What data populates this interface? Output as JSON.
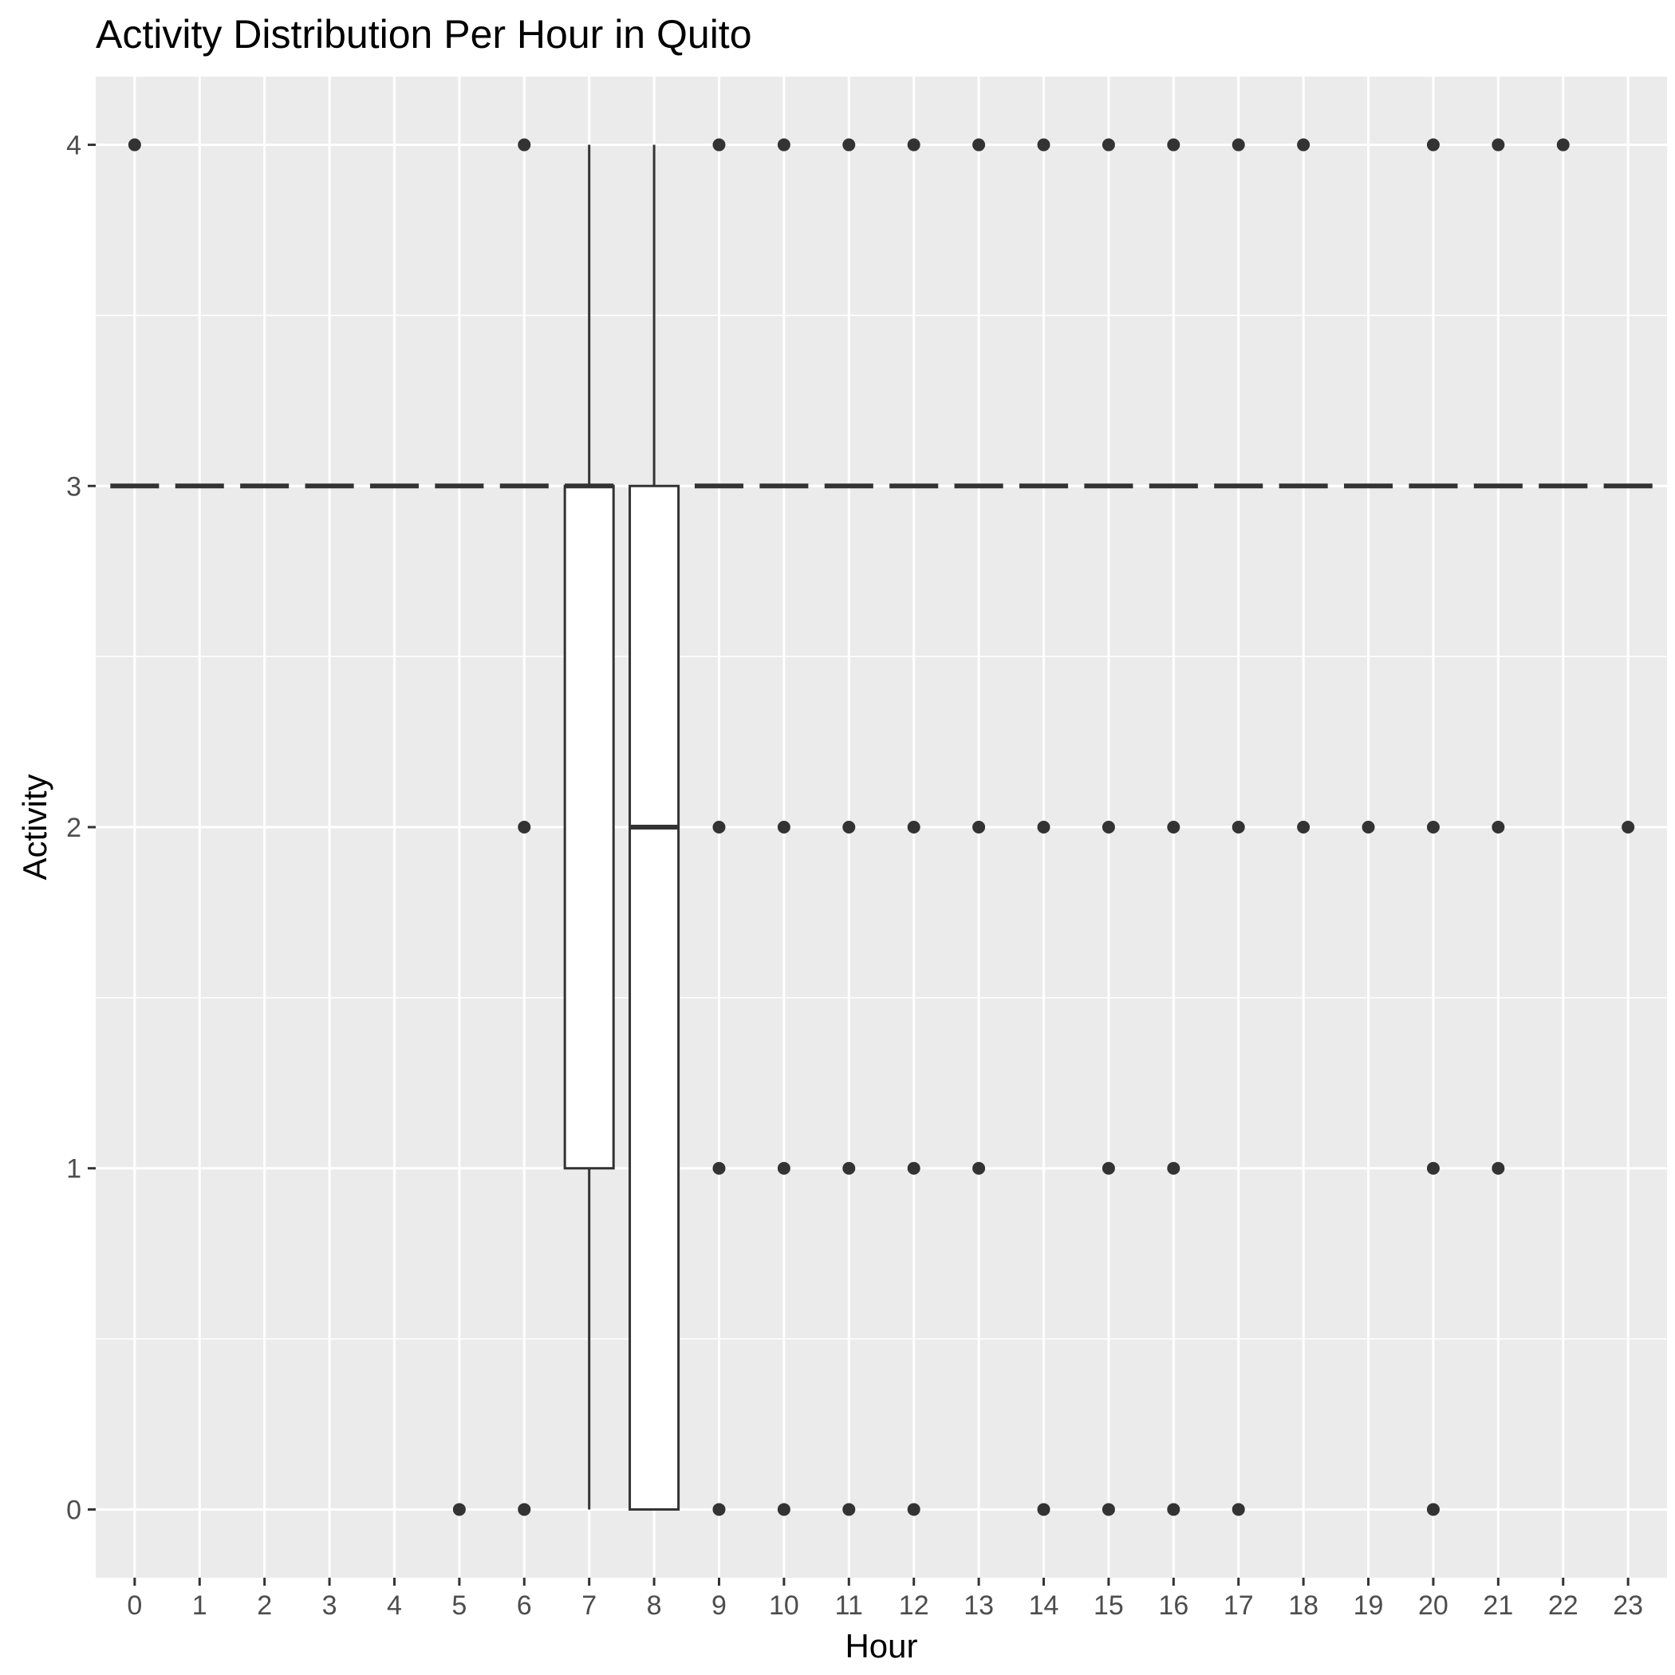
{
  "chart_data": {
    "type": "box",
    "title": "Activity Distribution Per Hour in Quito",
    "xlabel": "Hour",
    "ylabel": "Activity",
    "x_categories": [
      "0",
      "1",
      "2",
      "3",
      "4",
      "5",
      "6",
      "7",
      "8",
      "9",
      "10",
      "11",
      "12",
      "13",
      "14",
      "15",
      "16",
      "17",
      "18",
      "19",
      "20",
      "21",
      "22",
      "23"
    ],
    "y_ticks": [
      "0",
      "1",
      "2",
      "3",
      "4"
    ],
    "ylim": [
      -0.2,
      4.2
    ],
    "grid": true,
    "colors": {
      "panel": "#ebebeb",
      "grid": "#ffffff",
      "ink": "#333333",
      "box_fill": "#ffffff"
    },
    "boxes": [
      {
        "hour": "0",
        "lower": 3,
        "q1": 3,
        "median": 3,
        "q3": 3,
        "upper": 3,
        "outliers": [
          4
        ]
      },
      {
        "hour": "1",
        "lower": 3,
        "q1": 3,
        "median": 3,
        "q3": 3,
        "upper": 3,
        "outliers": []
      },
      {
        "hour": "2",
        "lower": 3,
        "q1": 3,
        "median": 3,
        "q3": 3,
        "upper": 3,
        "outliers": []
      },
      {
        "hour": "3",
        "lower": 3,
        "q1": 3,
        "median": 3,
        "q3": 3,
        "upper": 3,
        "outliers": []
      },
      {
        "hour": "4",
        "lower": 3,
        "q1": 3,
        "median": 3,
        "q3": 3,
        "upper": 3,
        "outliers": []
      },
      {
        "hour": "5",
        "lower": 3,
        "q1": 3,
        "median": 3,
        "q3": 3,
        "upper": 3,
        "outliers": [
          0
        ]
      },
      {
        "hour": "6",
        "lower": 3,
        "q1": 3,
        "median": 3,
        "q3": 3,
        "upper": 3,
        "outliers": [
          4,
          2,
          0
        ]
      },
      {
        "hour": "7",
        "lower": 0,
        "q1": 1,
        "median": 3,
        "q3": 3,
        "upper": 4,
        "outliers": []
      },
      {
        "hour": "8",
        "lower": 0,
        "q1": 0,
        "median": 2,
        "q3": 3,
        "upper": 4,
        "outliers": []
      },
      {
        "hour": "9",
        "lower": 3,
        "q1": 3,
        "median": 3,
        "q3": 3,
        "upper": 3,
        "outliers": [
          4,
          2,
          1,
          0
        ]
      },
      {
        "hour": "10",
        "lower": 3,
        "q1": 3,
        "median": 3,
        "q3": 3,
        "upper": 3,
        "outliers": [
          4,
          2,
          1,
          0
        ]
      },
      {
        "hour": "11",
        "lower": 3,
        "q1": 3,
        "median": 3,
        "q3": 3,
        "upper": 3,
        "outliers": [
          4,
          2,
          1,
          0
        ]
      },
      {
        "hour": "12",
        "lower": 3,
        "q1": 3,
        "median": 3,
        "q3": 3,
        "upper": 3,
        "outliers": [
          4,
          2,
          1,
          0
        ]
      },
      {
        "hour": "13",
        "lower": 3,
        "q1": 3,
        "median": 3,
        "q3": 3,
        "upper": 3,
        "outliers": [
          4,
          2,
          1
        ]
      },
      {
        "hour": "14",
        "lower": 3,
        "q1": 3,
        "median": 3,
        "q3": 3,
        "upper": 3,
        "outliers": [
          4,
          2,
          0
        ]
      },
      {
        "hour": "15",
        "lower": 3,
        "q1": 3,
        "median": 3,
        "q3": 3,
        "upper": 3,
        "outliers": [
          4,
          2,
          1,
          0
        ]
      },
      {
        "hour": "16",
        "lower": 3,
        "q1": 3,
        "median": 3,
        "q3": 3,
        "upper": 3,
        "outliers": [
          4,
          2,
          1,
          0
        ]
      },
      {
        "hour": "17",
        "lower": 3,
        "q1": 3,
        "median": 3,
        "q3": 3,
        "upper": 3,
        "outliers": [
          4,
          2,
          0
        ]
      },
      {
        "hour": "18",
        "lower": 3,
        "q1": 3,
        "median": 3,
        "q3": 3,
        "upper": 3,
        "outliers": [
          4,
          2
        ]
      },
      {
        "hour": "19",
        "lower": 3,
        "q1": 3,
        "median": 3,
        "q3": 3,
        "upper": 3,
        "outliers": [
          2
        ]
      },
      {
        "hour": "20",
        "lower": 3,
        "q1": 3,
        "median": 3,
        "q3": 3,
        "upper": 3,
        "outliers": [
          4,
          2,
          1,
          0
        ]
      },
      {
        "hour": "21",
        "lower": 3,
        "q1": 3,
        "median": 3,
        "q3": 3,
        "upper": 3,
        "outliers": [
          4,
          2,
          1
        ]
      },
      {
        "hour": "22",
        "lower": 3,
        "q1": 3,
        "median": 3,
        "q3": 3,
        "upper": 3,
        "outliers": [
          4
        ]
      },
      {
        "hour": "23",
        "lower": 3,
        "q1": 3,
        "median": 3,
        "q3": 3,
        "upper": 3,
        "outliers": [
          2
        ]
      }
    ]
  }
}
